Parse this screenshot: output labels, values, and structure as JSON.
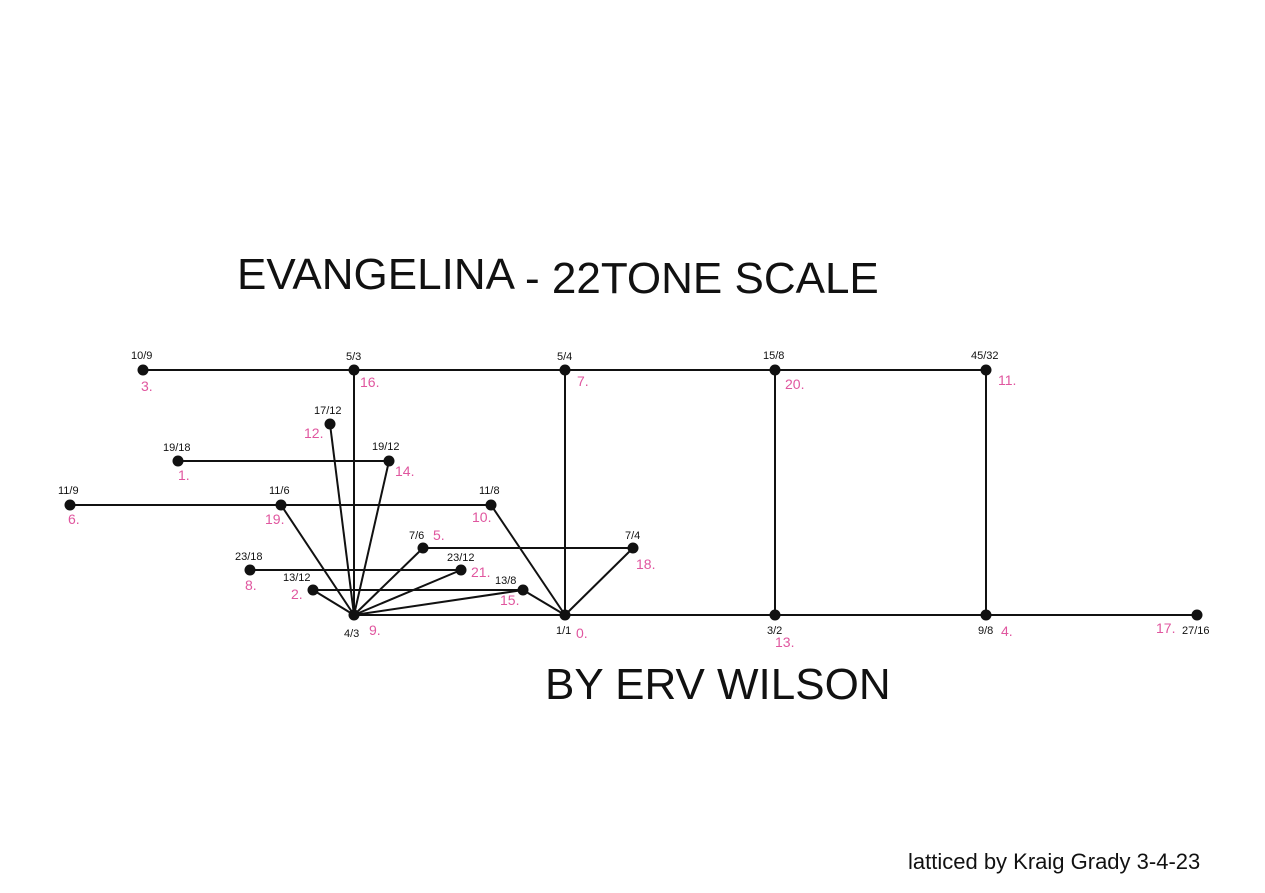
{
  "title": {
    "part1": "EVANGELINA",
    "part2": "- 22TONE SCALE"
  },
  "author": "BY ERV WILSON",
  "credit": "latticed by Kraig Grady 3-4-23",
  "colors": {
    "lines": "#111111",
    "ratio_labels": "#111111",
    "step_labels": "#e0569f"
  },
  "nodes": [
    {
      "id": "10/9",
      "ratio": "10/9",
      "step": "3."
    },
    {
      "id": "5/3",
      "ratio": "5/3",
      "step": "16."
    },
    {
      "id": "5/4",
      "ratio": "5/4",
      "step": "7."
    },
    {
      "id": "15/8",
      "ratio": "15/8",
      "step": "20."
    },
    {
      "id": "45/32",
      "ratio": "45/32",
      "step": "11."
    },
    {
      "id": "17/12",
      "ratio": "17/12",
      "step": "12."
    },
    {
      "id": "19/18",
      "ratio": "19/18",
      "step": "1."
    },
    {
      "id": "19/12",
      "ratio": "19/12",
      "step": "14."
    },
    {
      "id": "11/9",
      "ratio": "11/9",
      "step": "6."
    },
    {
      "id": "11/6",
      "ratio": "11/6",
      "step": "19."
    },
    {
      "id": "11/8",
      "ratio": "11/8",
      "step": "10."
    },
    {
      "id": "7/6",
      "ratio": "7/6",
      "step": "5."
    },
    {
      "id": "7/4",
      "ratio": "7/4",
      "step": "18."
    },
    {
      "id": "23/18",
      "ratio": "23/18",
      "step": "8."
    },
    {
      "id": "23/12",
      "ratio": "23/12",
      "step": "21."
    },
    {
      "id": "13/12",
      "ratio": "13/12",
      "step": "2."
    },
    {
      "id": "13/8",
      "ratio": "13/8",
      "step": "15."
    },
    {
      "id": "4/3",
      "ratio": "4/3",
      "step": "9."
    },
    {
      "id": "1/1",
      "ratio": "1/1",
      "step": "0."
    },
    {
      "id": "3/2",
      "ratio": "3/2",
      "step": "13."
    },
    {
      "id": "9/8",
      "ratio": "9/8",
      "step": "4."
    },
    {
      "id": "27/16",
      "ratio": "27/16",
      "step": "17."
    }
  ],
  "edges": [
    [
      "10/9",
      "5/3"
    ],
    [
      "5/3",
      "5/4"
    ],
    [
      "5/4",
      "15/8"
    ],
    [
      "15/8",
      "45/32"
    ],
    [
      "5/3",
      "4/3"
    ],
    [
      "5/4",
      "1/1"
    ],
    [
      "15/8",
      "3/2"
    ],
    [
      "45/32",
      "9/8"
    ],
    [
      "19/18",
      "19/12"
    ],
    [
      "11/9",
      "11/6"
    ],
    [
      "11/6",
      "11/8"
    ],
    [
      "7/6",
      "7/4"
    ],
    [
      "23/18",
      "23/12"
    ],
    [
      "13/12",
      "13/8"
    ],
    [
      "4/3",
      "1/1"
    ],
    [
      "1/1",
      "3/2"
    ],
    [
      "3/2",
      "9/8"
    ],
    [
      "9/8",
      "27/16"
    ],
    [
      "4/3",
      "17/12"
    ],
    [
      "4/3",
      "19/12"
    ],
    [
      "4/3",
      "11/6"
    ],
    [
      "4/3",
      "7/6"
    ],
    [
      "4/3",
      "23/12"
    ],
    [
      "4/3",
      "13/12"
    ],
    [
      "4/3",
      "13/8"
    ],
    [
      "1/1",
      "11/8"
    ],
    [
      "1/1",
      "7/4"
    ],
    [
      "1/1",
      "13/8"
    ]
  ]
}
